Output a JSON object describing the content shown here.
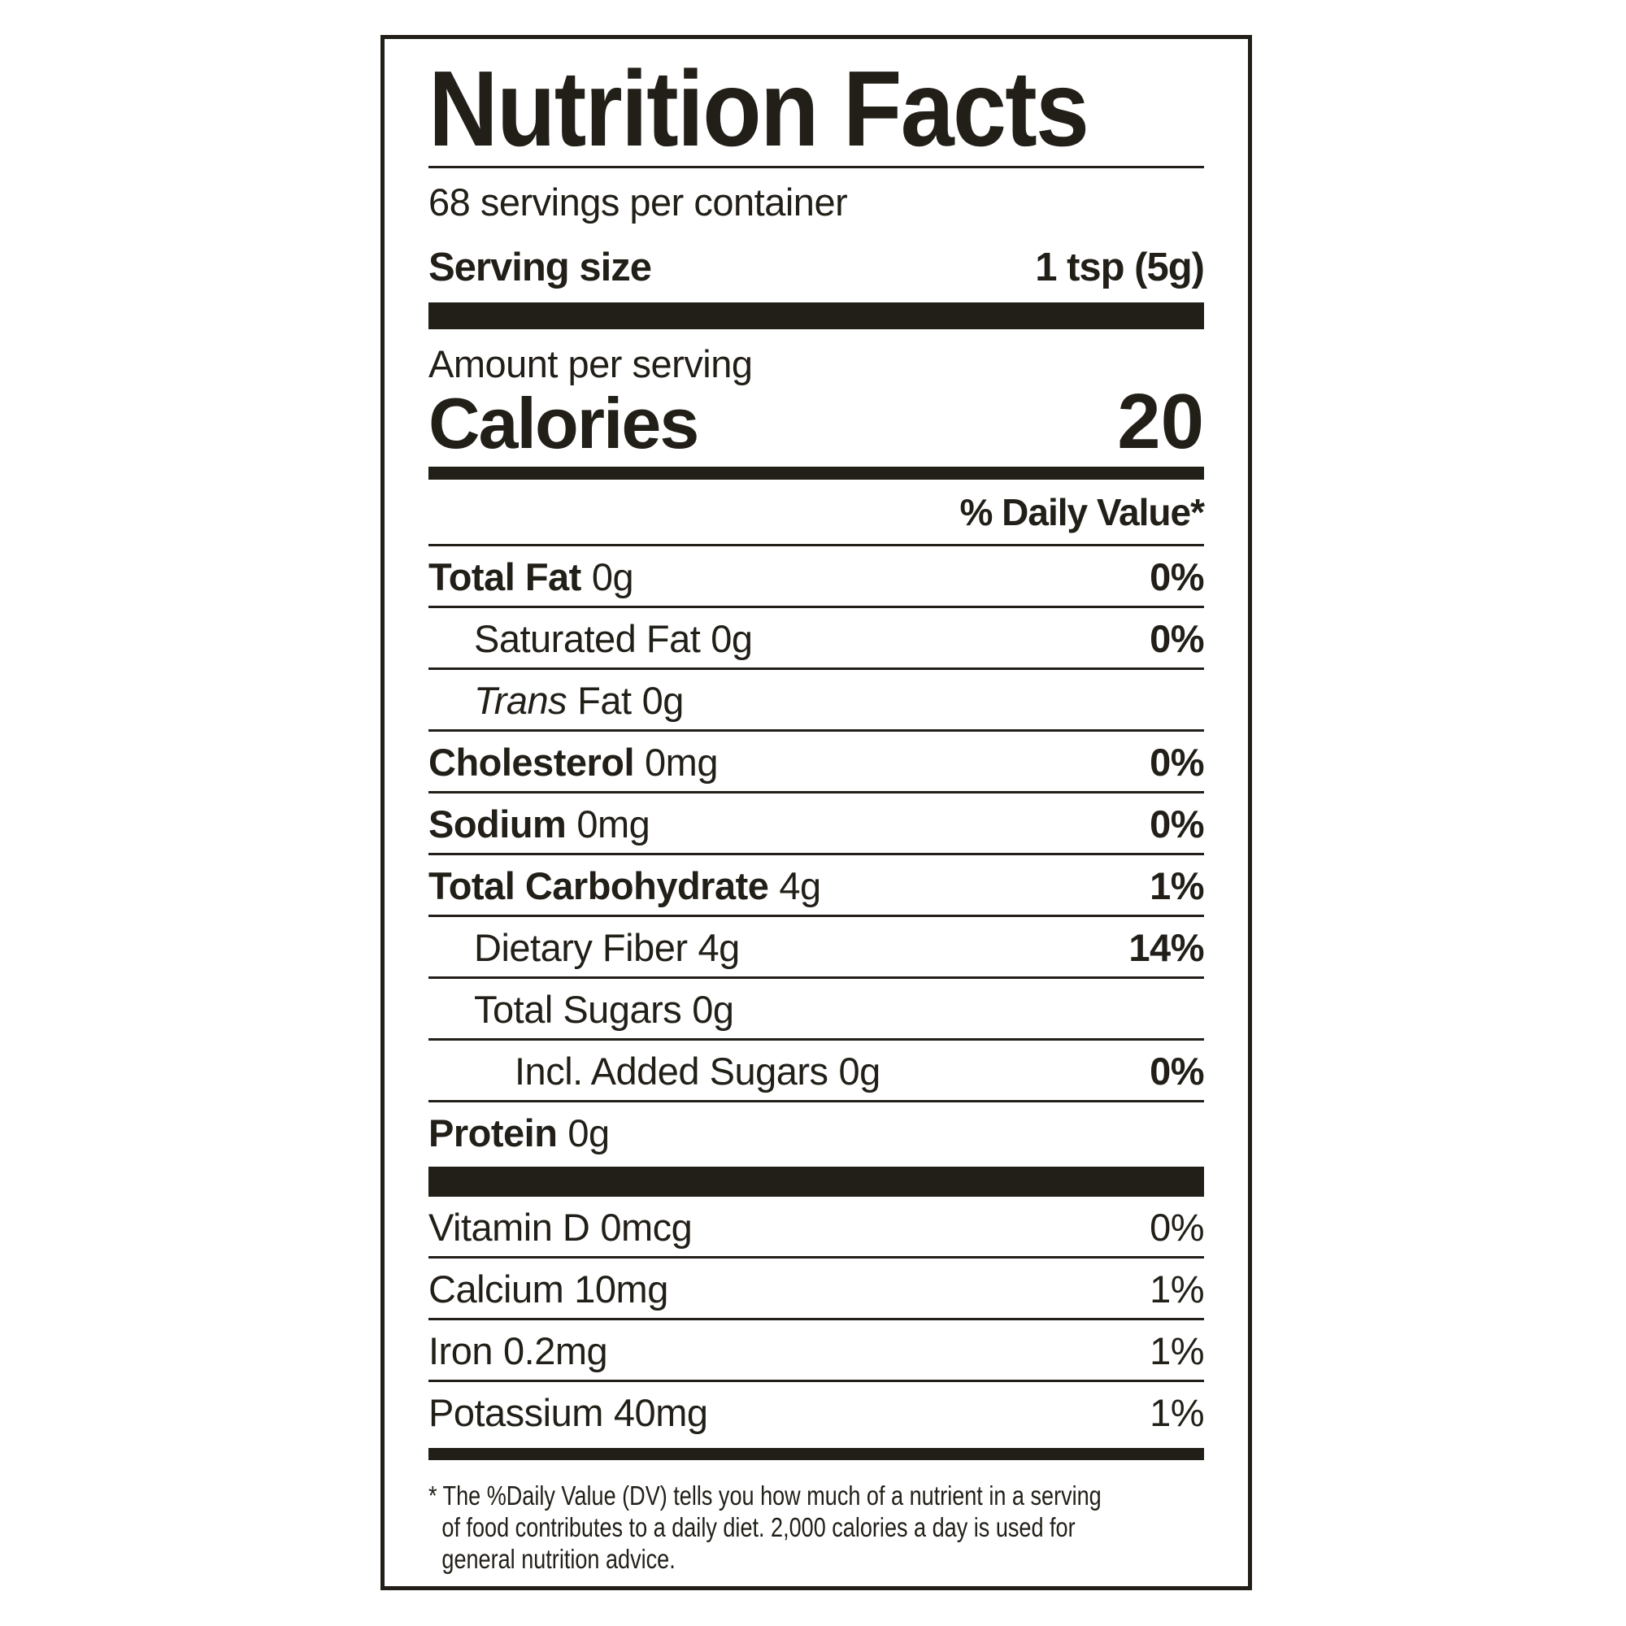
{
  "colors": {
    "ink": "#221f18",
    "background": "#ffffff"
  },
  "label": {
    "title": "Nutrition Facts",
    "servings_per_container": "68 servings per container",
    "serving_size_label": "Serving size",
    "serving_size_value": "1 tsp (5g)",
    "amount_per_serving": "Amount per serving",
    "calories_label": "Calories",
    "calories_value": "20",
    "daily_value_header": "% Daily Value*",
    "nutrients": [
      {
        "name": "Total Fat",
        "amount": "0g",
        "dv": "0%"
      },
      {
        "name": "Saturated Fat",
        "amount": "0g",
        "dv": "0%"
      },
      {
        "name": "Trans",
        "name_rest": "Fat",
        "amount": "0g",
        "dv": ""
      },
      {
        "name": "Cholesterol",
        "amount": "0mg",
        "dv": "0%"
      },
      {
        "name": "Sodium",
        "amount": "0mg",
        "dv": "0%"
      },
      {
        "name": "Total Carbohydrate",
        "amount": "4g",
        "dv": "1%"
      },
      {
        "name": "Dietary Fiber",
        "amount": "4g",
        "dv": "14%"
      },
      {
        "name": "Total Sugars",
        "amount": "0g",
        "dv": ""
      },
      {
        "name": "Incl. Added Sugars",
        "amount": "0g",
        "dv": "0%"
      },
      {
        "name": "Protein",
        "amount": "0g",
        "dv": ""
      }
    ],
    "micronutrients": [
      {
        "name": "Vitamin D",
        "amount": "0mcg",
        "dv": "0%"
      },
      {
        "name": "Calcium",
        "amount": "10mg",
        "dv": "1%"
      },
      {
        "name": "Iron",
        "amount": "0.2mg",
        "dv": "1%"
      },
      {
        "name": "Potassium",
        "amount": "40mg",
        "dv": "1%"
      }
    ],
    "footnote": {
      "line1": "* The %Daily Value (DV) tells you how much of a nutrient in a serving",
      "line2": "of food contributes to a daily diet. 2,000 calories a day is used for",
      "line3": "general nutrition advice."
    }
  }
}
